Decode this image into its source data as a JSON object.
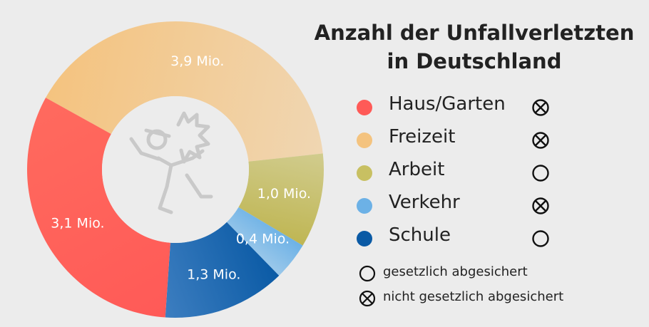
{
  "chart_data": {
    "type": "pie",
    "title": "Anzahl der Unfallverletzten in Deutschland",
    "title_lines": [
      "Anzahl der Unfallverletzten",
      "in Deutschland"
    ],
    "slices": [
      {
        "name": "Freizeit",
        "value": 3.9,
        "label": "3,9 Mio.",
        "color": "#f4c37f",
        "color_end": "#f0d6b2",
        "insured": false
      },
      {
        "name": "Arbeit",
        "value": 1.0,
        "label": "1,0 Mio.",
        "color": "#d1cc8e",
        "color_end": "#bfb653",
        "insured": true
      },
      {
        "name": "Verkehr",
        "value": 0.4,
        "label": "0,4 Mio.",
        "color": "#6cb1e6",
        "color_end": "#9bc8ea",
        "insured": false
      },
      {
        "name": "Schule",
        "value": 1.3,
        "label": "1,3 Mio.",
        "color": "#0a5aa5",
        "color_end": "#3d7ec0",
        "insured": true
      },
      {
        "name": "Haus/Garten",
        "value": 3.1,
        "label": "3,1 Mio.",
        "color": "#ff5a57",
        "color_end": "#ff6a5e",
        "insured": false
      }
    ],
    "legend": {
      "placement": "right",
      "items": [
        {
          "name": "Haus/Garten",
          "color": "#ff5a57",
          "insured": false
        },
        {
          "name": "Freizeit",
          "color": "#f4c37f",
          "insured": false
        },
        {
          "name": "Arbeit",
          "color": "#c8c062",
          "insured": true
        },
        {
          "name": "Verkehr",
          "color": "#6cb1e6",
          "insured": false
        },
        {
          "name": "Schule",
          "color": "#0a5aa5",
          "insured": true
        }
      ]
    },
    "key": {
      "insured": "gesetzlich abgesichert",
      "not_insured": "nicht gesetzlich abgesichert"
    },
    "center_icon": "falling-person-icon"
  }
}
